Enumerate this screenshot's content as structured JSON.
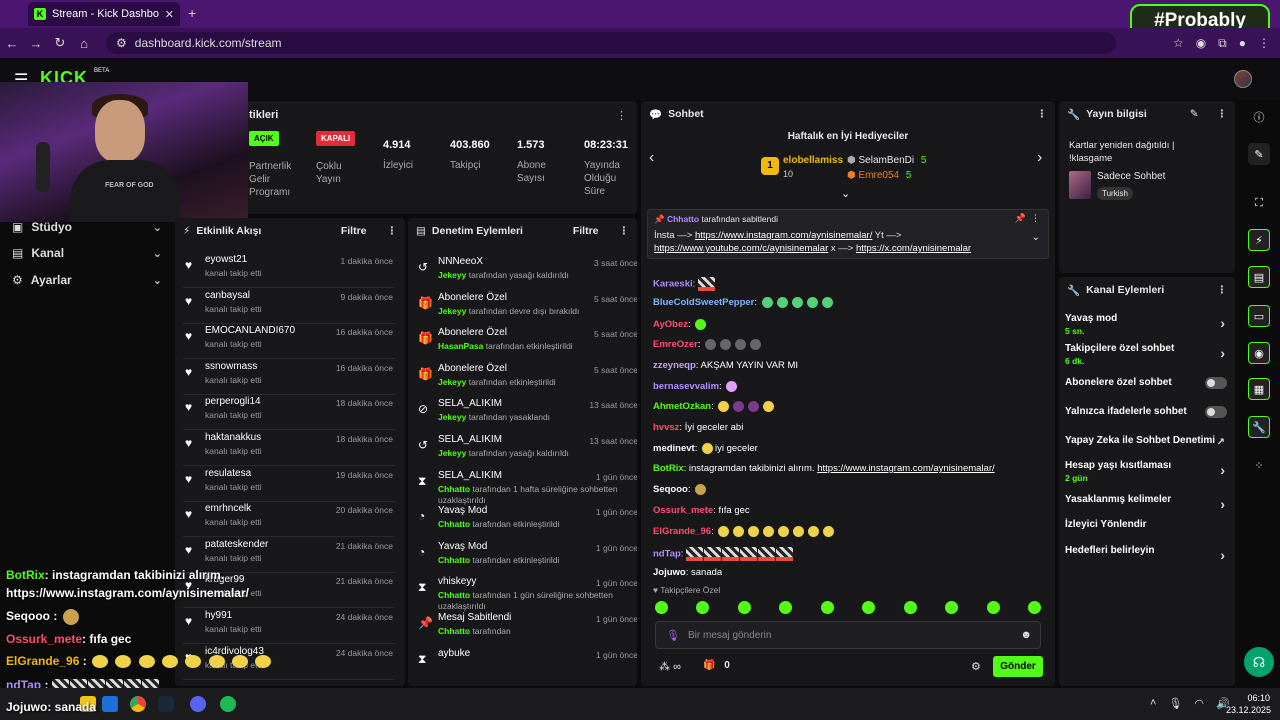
{
  "browser": {
    "tab_title": "Stream - Kick Dashboard",
    "url": "dashboard.kick.com/stream",
    "brand_overlay": "#Probably"
  },
  "kick": {
    "logo": "KICK",
    "beta": "BETA"
  },
  "leftnav": {
    "items": [
      {
        "label": "Stüdyo"
      },
      {
        "label": "Kanal"
      },
      {
        "label": "Ayarlar"
      }
    ]
  },
  "cam": {
    "shirt_text": "FEAR OF GOD"
  },
  "stats": {
    "header": "tikleri",
    "partner_badge": "AÇIK",
    "partner_label": [
      "Partnerlik",
      "Gelir",
      "Programı"
    ],
    "multistream_badge": "KAPALI",
    "multistream_label": [
      "Çoklu",
      "Yayın"
    ],
    "viewers": {
      "value": "4.914",
      "label": "İzleyici"
    },
    "followers": {
      "value": "403.860",
      "label": "Takipçi"
    },
    "subs": {
      "value": "1.573",
      "label": [
        "Abone",
        "Sayısı"
      ]
    },
    "duration": {
      "value": "08:23:31",
      "label": [
        "Yayında",
        "Olduğu",
        "Süre"
      ]
    }
  },
  "activity": {
    "title": "Etkinlik Akışı",
    "filter": "Filtre",
    "items": [
      {
        "name": "eyowst21",
        "sub": "kanalı takip etti",
        "time": "1 dakika önce"
      },
      {
        "name": "canbaysal",
        "sub": "kanalı takip etti",
        "time": "9 dakika önce"
      },
      {
        "name": "EMOCANLANDI670",
        "sub": "kanalı takip etti",
        "time": "16 dakika önce"
      },
      {
        "name": "ssnowmass",
        "sub": "kanalı takip etti",
        "time": "16 dakika önce"
      },
      {
        "name": "perperogli14",
        "sub": "kanalı takip etti",
        "time": "18 dakika önce"
      },
      {
        "name": "haktanakkus",
        "sub": "kanalı takip etti",
        "time": "18 dakika önce"
      },
      {
        "name": "resulatesa",
        "sub": "kanalı takip etti",
        "time": "19 dakika önce"
      },
      {
        "name": "emrhncelk",
        "sub": "kanalı takip etti",
        "time": "20 dakika önce"
      },
      {
        "name": "patateskender",
        "sub": "kanalı takip etti",
        "time": "21 dakika önce"
      },
      {
        "name": "kruger99",
        "sub": "kanalı takip etti",
        "time": "21 dakika önce"
      },
      {
        "name": "hy991",
        "sub": "kanalı takip etti",
        "time": "24 dakika önce"
      },
      {
        "name": "ic4rdivolog43",
        "sub": "kanalı takip etti",
        "time": "24 dakika önce"
      }
    ]
  },
  "moderation": {
    "title": "Denetim Eylemleri",
    "filter": "Filtre",
    "items": [
      {
        "icon": "↺",
        "name": "NNNeeoX",
        "actor": "Jekeyy",
        "text": "tarafından yasağı kaldırıldı",
        "time": "3 saat önce"
      },
      {
        "icon": "🎁",
        "name": "Abonelere Özel",
        "actor": "Jekeyy",
        "text": "tarafından devre dışı bırakıldı",
        "time": "5 saat önce"
      },
      {
        "icon": "🎁",
        "name": "Abonelere Özel",
        "actor": "HasanPasa",
        "text": "tarafından etkinleştirildi",
        "time": "5 saat önce"
      },
      {
        "icon": "🎁",
        "name": "Abonelere Özel",
        "actor": "Jekeyy",
        "text": "tarafından etkinleştirildi",
        "time": "5 saat önce"
      },
      {
        "icon": "⊘",
        "name": "SELA_ALIKIM",
        "actor": "Jekeyy",
        "text": "tarafından yasaklandı",
        "time": "13 saat önce"
      },
      {
        "icon": "↺",
        "name": "SELA_ALIKIM",
        "actor": "Jekeyy",
        "text": "tarafından yasağı kaldırıldı",
        "time": "13 saat önce"
      },
      {
        "icon": "⧗",
        "name": "SELA_ALIKIM",
        "actor": "Chhatto",
        "text": "tarafından 1 hafta süreliğine sohbetten uzaklaştırıldı",
        "time": "1 gün önce"
      },
      {
        "icon": "◔",
        "name": "Yavaş Mod",
        "actor": "Chhatto",
        "text": "tarafından etkinleştirildi",
        "time": "1 gün önce"
      },
      {
        "icon": "◔",
        "name": "Yavaş Mod",
        "actor": "Chhatto",
        "text": "tarafından etkinleştirildi",
        "time": "1 gün önce"
      },
      {
        "icon": "⧗",
        "name": "vhiskeyy",
        "actor": "Chhatto",
        "text": "tarafından 1 gün süreliğine sohbetten uzaklaştırıldı",
        "time": "1 gün önce"
      },
      {
        "icon": "📌",
        "name": "Mesaj Sabitlendi",
        "actor": "Chhatto",
        "text": "tarafından",
        "time": "1 gün önce"
      },
      {
        "icon": "⧗",
        "name": "aybuke",
        "actor": "",
        "text": "",
        "time": "1 gün önce"
      }
    ]
  },
  "chat": {
    "title": "Sohbet",
    "gifters_title": "Haftalık en İyi Hediyeciler",
    "gifter1": {
      "rank": "1",
      "name": "elobellamiss",
      "count": "10"
    },
    "gifter2": {
      "name": "SelamBenDi",
      "count": "5"
    },
    "gifter3": {
      "name": "Emre054",
      "count": "5"
    },
    "pinned": {
      "by_user": "Chhatto",
      "by_text": "tarafından sabitlendi",
      "line1_pre": "İnsta —> ",
      "link1": "https://www.instagram.com/aynisinemalar/",
      "line1_post": " Yt —>",
      "link2": "https://www.youtube.com/c/aynisinemalar",
      "mid": " x —> ",
      "link3": "https://x.com/aynisinemalar"
    },
    "messages": [
      {
        "user": "Karaeski",
        "color": "#b08cff",
        "text": ""
      },
      {
        "user": "BlueColdSweetPepper",
        "color": "#7ab8ff",
        "text": ""
      },
      {
        "user": "AyObez",
        "color": "#ff4d6d",
        "text": ""
      },
      {
        "user": "EmreOzer",
        "color": "#ff4d6d",
        "text": ""
      },
      {
        "user": "zzeyneqp",
        "color": "#c0a0ff",
        "text": "AKŞAM YAYIN VAR MI"
      },
      {
        "user": "bernasevvalim",
        "color": "#b08cff",
        "text": ""
      },
      {
        "user": "AhmetOzkan",
        "color": "#53fc18",
        "text": ""
      },
      {
        "user": "hvvsz",
        "color": "#ff4d6d",
        "text": "İyi geceler abi"
      },
      {
        "user": "medinevt",
        "color": "#ffffff",
        "text": "iyi geceler"
      },
      {
        "user": "BotRix",
        "color": "#53fc18",
        "text": "instagramdan takibinizi alırım.",
        "link": "https://www.instagram.com/aynisinemalar/"
      },
      {
        "user": "Seqooo",
        "color": "#ffffff",
        "text": ""
      },
      {
        "user": "Ossurk_mete",
        "color": "#ff4d6d",
        "text": "fıfa gec"
      },
      {
        "user": "ElGrande_96",
        "color": "#ff4d6d",
        "text": ""
      },
      {
        "user": "ndTap",
        "color": "#b08cff",
        "text": ""
      },
      {
        "user": "Jojuwo",
        "color": "#ffffff",
        "text": "sanada"
      }
    ],
    "followers_only": "Takipçilere Özel",
    "input_placeholder": "Bir mesaj gönderin",
    "points": "∞",
    "gift_count": "0",
    "send": "Gönder"
  },
  "stream_info": {
    "title": "Yayın bilgisi",
    "stream_title": "Kartlar yeniden dağıtıldı | !klasgame",
    "category": "Sadece Sohbet",
    "tag": "Turkish"
  },
  "channel_actions": {
    "title": "Kanal Eylemleri",
    "items": [
      {
        "label": "Yavaş mod",
        "sub": "5 sn.",
        "kind": "chev"
      },
      {
        "label": "Takipçilere özel sohbet",
        "sub": "6 dk.",
        "kind": "chev"
      },
      {
        "label": "Abonelere özel sohbet",
        "sub": "",
        "kind": "toggle"
      },
      {
        "label": "Yalnızca ifadelerle sohbet",
        "sub": "",
        "kind": "toggle"
      },
      {
        "label": "Yapay Zeka ile Sohbet Denetimi",
        "sub": "",
        "kind": "ext"
      },
      {
        "label": "Hesap yaşı kısıtlaması",
        "sub": "2 gün",
        "kind": "chev"
      },
      {
        "label": "Yasaklanmış kelimeler",
        "sub": "",
        "kind": "chev"
      },
      {
        "label": "İzleyici Yönlendir",
        "sub": "",
        "kind": "none"
      },
      {
        "label": "Hedefleri belirleyin",
        "sub": "",
        "kind": "chev"
      }
    ]
  },
  "overlay_chat": {
    "line1_user": "BotRix",
    "line1_text": ": instagramdan takibinizi alırım.",
    "line2": "https://www.instagram.com/aynisinemalar/",
    "line3_user": "Seqooo",
    "line4_user": "Ossurk_mete",
    "line4_text": ": fıfa gec",
    "line5_user": "ElGrande_96",
    "line6_user": "ndTap",
    "line7_user": "Jojuwo",
    "line7_text": ": sanada"
  },
  "clock": {
    "time": "06:10",
    "date": "23.12.2025"
  },
  "colors": {
    "accent": "#53fc18",
    "panel": "#18181b",
    "badge_off": "#e02d3c"
  }
}
